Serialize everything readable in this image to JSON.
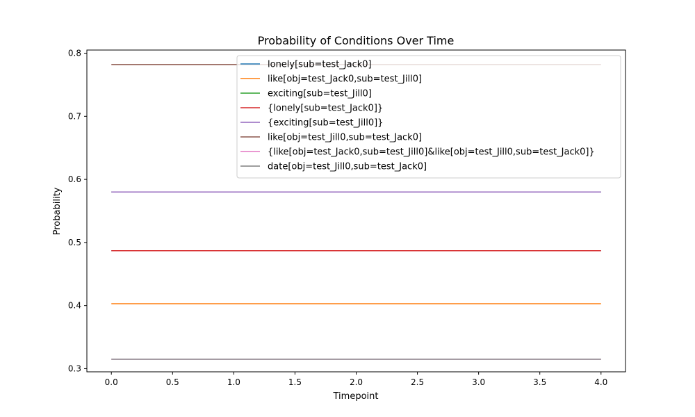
{
  "chart_data": {
    "type": "line",
    "title": "Probability of Conditions Over Time",
    "xlabel": "Timepoint",
    "ylabel": "Probability",
    "x": [
      0,
      1,
      2,
      3,
      4
    ],
    "xlim": [
      -0.2,
      4.2
    ],
    "ylim": [
      0.295,
      0.805
    ],
    "xticks": [
      0.0,
      0.5,
      1.0,
      1.5,
      2.0,
      2.5,
      3.0,
      3.5,
      4.0
    ],
    "xtick_labels": [
      "0.0",
      "0.5",
      "1.0",
      "1.5",
      "2.0",
      "2.5",
      "3.0",
      "3.5",
      "4.0"
    ],
    "yticks": [
      0.3,
      0.4,
      0.5,
      0.6,
      0.7,
      0.8
    ],
    "ytick_labels": [
      "0.3",
      "0.4",
      "0.5",
      "0.6",
      "0.7",
      "0.8"
    ],
    "grid": false,
    "legend_position": "top-right",
    "series": [
      {
        "name": "lonely[sub=test_Jack0]",
        "color": "#1f77b4",
        "values": [
          0.487,
          0.487,
          0.487,
          0.487,
          0.487
        ]
      },
      {
        "name": "like[obj=test_Jack0,sub=test_Jill0]",
        "color": "#ff7f0e",
        "values": [
          0.403,
          0.403,
          0.403,
          0.403,
          0.403
        ]
      },
      {
        "name": "exciting[sub=test_Jill0]",
        "color": "#2ca02c",
        "values": [
          0.58,
          0.58,
          0.58,
          0.58,
          0.58
        ]
      },
      {
        "name": "{lonely[sub=test_Jack0]}",
        "color": "#d62728",
        "values": [
          0.487,
          0.487,
          0.487,
          0.487,
          0.487
        ]
      },
      {
        "name": "{exciting[sub=test_Jill0]}",
        "color": "#9467bd",
        "values": [
          0.58,
          0.58,
          0.58,
          0.58,
          0.58
        ]
      },
      {
        "name": "like[obj=test_Jill0,sub=test_Jack0]",
        "color": "#8c564b",
        "values": [
          0.782,
          0.782,
          0.782,
          0.782,
          0.782
        ]
      },
      {
        "name": "{like[obj=test_Jack0,sub=test_Jill0]&like[obj=test_Jill0,sub=test_Jack0]}",
        "color": "#e377c2",
        "values": [
          0.315,
          0.315,
          0.315,
          0.315,
          0.315
        ]
      },
      {
        "name": "date[obj=test_Jill0,sub=test_Jack0]",
        "color": "#7f7f7f",
        "values": [
          0.315,
          0.315,
          0.315,
          0.315,
          0.315
        ]
      }
    ]
  }
}
